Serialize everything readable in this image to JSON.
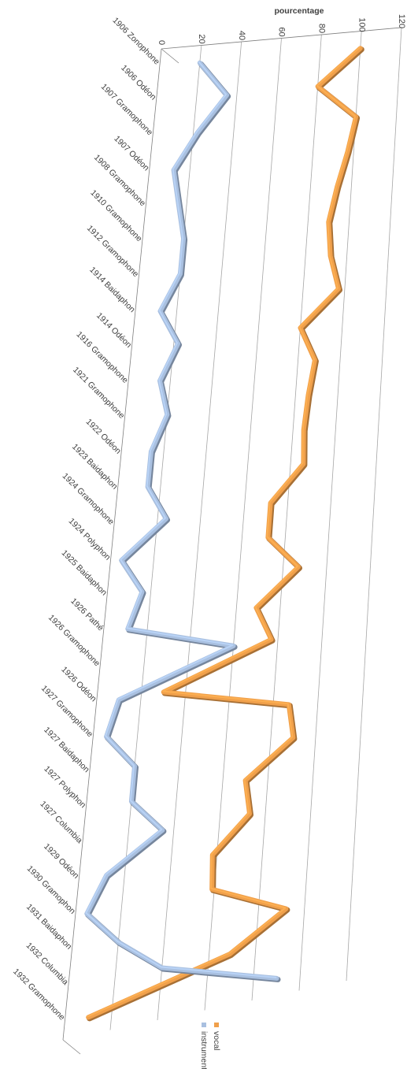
{
  "chart_data": {
    "type": "line",
    "title": "",
    "ylabel": "pourcentage",
    "xlabel": "",
    "ylim": [
      0,
      120
    ],
    "yticks": [
      0,
      20,
      40,
      60,
      80,
      100,
      120
    ],
    "grid": true,
    "legend_position": "bottom",
    "categories": [
      "1906 Zonophone",
      "1906 Odéon",
      "1907 Gramophone",
      "1907 Odéon",
      "1908 Gramophone",
      "1910 Gramophone",
      "1912 Gramophone",
      "1914 Baidaphon",
      "1914 Odéon",
      "1916 Gramophone",
      "1921 Gramophone",
      "1922 Odéon",
      "1923 Baidaphon",
      "1924 Gramophone",
      "1924 Polyphon",
      "1925 Baidaphon",
      "1926 Pathé",
      "1926 Gramophone",
      "1926 Odéon",
      "1927 Gramophone",
      "1927 Baidaphon",
      "1927 Polyphon",
      "1927 Columbia",
      "1929 Odéon",
      "1930 Gramophon",
      "1931 Baidaphon",
      "1932 Columbia",
      "1932 Gramophone"
    ],
    "series": [
      {
        "name": "vocal",
        "color": "#f0a04b",
        "values": [
          100,
          80,
          100,
          97,
          93,
          90,
          92,
          97,
          80,
          88,
          86,
          85,
          86,
          72,
          72,
          87,
          69,
          77,
          30,
          87,
          90,
          70,
          73,
          58,
          59,
          92,
          69,
          10
        ]
      },
      {
        "name": "instrumental",
        "color": "#a9c0e0",
        "values": [
          20,
          35,
          22,
          12,
          16,
          20,
          20,
          12,
          22,
          15,
          20,
          14,
          14,
          24,
          5,
          16,
          11,
          60,
          10,
          6,
          20,
          20,
          35,
          12,
          5,
          20,
          40,
          90
        ]
      }
    ]
  }
}
